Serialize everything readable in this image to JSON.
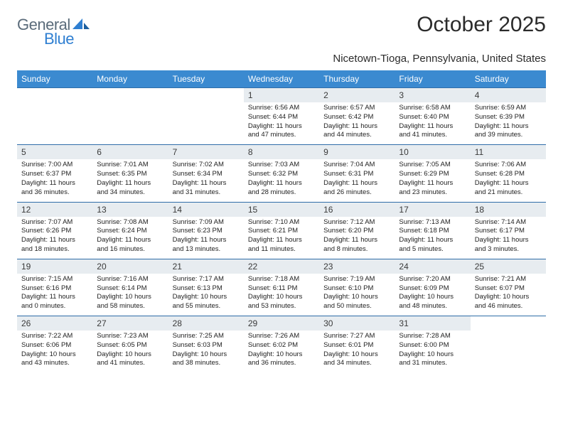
{
  "brand": {
    "part1": "General",
    "part2": "Blue",
    "logo_color": "#2f7fd1",
    "text1_color": "#5a6b7a"
  },
  "title": "October 2025",
  "location": "Nicetown-Tioga, Pennsylvania, United States",
  "header_bg": "#3b8ad0",
  "daynum_bg": "#e7ecf0",
  "border_color": "#2f6da8",
  "day_names": [
    "Sunday",
    "Monday",
    "Tuesday",
    "Wednesday",
    "Thursday",
    "Friday",
    "Saturday"
  ],
  "weeks": [
    [
      null,
      null,
      null,
      {
        "n": "1",
        "sr": "Sunrise: 6:56 AM",
        "ss": "Sunset: 6:44 PM",
        "d1": "Daylight: 11 hours",
        "d2": "and 47 minutes."
      },
      {
        "n": "2",
        "sr": "Sunrise: 6:57 AM",
        "ss": "Sunset: 6:42 PM",
        "d1": "Daylight: 11 hours",
        "d2": "and 44 minutes."
      },
      {
        "n": "3",
        "sr": "Sunrise: 6:58 AM",
        "ss": "Sunset: 6:40 PM",
        "d1": "Daylight: 11 hours",
        "d2": "and 41 minutes."
      },
      {
        "n": "4",
        "sr": "Sunrise: 6:59 AM",
        "ss": "Sunset: 6:39 PM",
        "d1": "Daylight: 11 hours",
        "d2": "and 39 minutes."
      }
    ],
    [
      {
        "n": "5",
        "sr": "Sunrise: 7:00 AM",
        "ss": "Sunset: 6:37 PM",
        "d1": "Daylight: 11 hours",
        "d2": "and 36 minutes."
      },
      {
        "n": "6",
        "sr": "Sunrise: 7:01 AM",
        "ss": "Sunset: 6:35 PM",
        "d1": "Daylight: 11 hours",
        "d2": "and 34 minutes."
      },
      {
        "n": "7",
        "sr": "Sunrise: 7:02 AM",
        "ss": "Sunset: 6:34 PM",
        "d1": "Daylight: 11 hours",
        "d2": "and 31 minutes."
      },
      {
        "n": "8",
        "sr": "Sunrise: 7:03 AM",
        "ss": "Sunset: 6:32 PM",
        "d1": "Daylight: 11 hours",
        "d2": "and 28 minutes."
      },
      {
        "n": "9",
        "sr": "Sunrise: 7:04 AM",
        "ss": "Sunset: 6:31 PM",
        "d1": "Daylight: 11 hours",
        "d2": "and 26 minutes."
      },
      {
        "n": "10",
        "sr": "Sunrise: 7:05 AM",
        "ss": "Sunset: 6:29 PM",
        "d1": "Daylight: 11 hours",
        "d2": "and 23 minutes."
      },
      {
        "n": "11",
        "sr": "Sunrise: 7:06 AM",
        "ss": "Sunset: 6:28 PM",
        "d1": "Daylight: 11 hours",
        "d2": "and 21 minutes."
      }
    ],
    [
      {
        "n": "12",
        "sr": "Sunrise: 7:07 AM",
        "ss": "Sunset: 6:26 PM",
        "d1": "Daylight: 11 hours",
        "d2": "and 18 minutes."
      },
      {
        "n": "13",
        "sr": "Sunrise: 7:08 AM",
        "ss": "Sunset: 6:24 PM",
        "d1": "Daylight: 11 hours",
        "d2": "and 16 minutes."
      },
      {
        "n": "14",
        "sr": "Sunrise: 7:09 AM",
        "ss": "Sunset: 6:23 PM",
        "d1": "Daylight: 11 hours",
        "d2": "and 13 minutes."
      },
      {
        "n": "15",
        "sr": "Sunrise: 7:10 AM",
        "ss": "Sunset: 6:21 PM",
        "d1": "Daylight: 11 hours",
        "d2": "and 11 minutes."
      },
      {
        "n": "16",
        "sr": "Sunrise: 7:12 AM",
        "ss": "Sunset: 6:20 PM",
        "d1": "Daylight: 11 hours",
        "d2": "and 8 minutes."
      },
      {
        "n": "17",
        "sr": "Sunrise: 7:13 AM",
        "ss": "Sunset: 6:18 PM",
        "d1": "Daylight: 11 hours",
        "d2": "and 5 minutes."
      },
      {
        "n": "18",
        "sr": "Sunrise: 7:14 AM",
        "ss": "Sunset: 6:17 PM",
        "d1": "Daylight: 11 hours",
        "d2": "and 3 minutes."
      }
    ],
    [
      {
        "n": "19",
        "sr": "Sunrise: 7:15 AM",
        "ss": "Sunset: 6:16 PM",
        "d1": "Daylight: 11 hours",
        "d2": "and 0 minutes."
      },
      {
        "n": "20",
        "sr": "Sunrise: 7:16 AM",
        "ss": "Sunset: 6:14 PM",
        "d1": "Daylight: 10 hours",
        "d2": "and 58 minutes."
      },
      {
        "n": "21",
        "sr": "Sunrise: 7:17 AM",
        "ss": "Sunset: 6:13 PM",
        "d1": "Daylight: 10 hours",
        "d2": "and 55 minutes."
      },
      {
        "n": "22",
        "sr": "Sunrise: 7:18 AM",
        "ss": "Sunset: 6:11 PM",
        "d1": "Daylight: 10 hours",
        "d2": "and 53 minutes."
      },
      {
        "n": "23",
        "sr": "Sunrise: 7:19 AM",
        "ss": "Sunset: 6:10 PM",
        "d1": "Daylight: 10 hours",
        "d2": "and 50 minutes."
      },
      {
        "n": "24",
        "sr": "Sunrise: 7:20 AM",
        "ss": "Sunset: 6:09 PM",
        "d1": "Daylight: 10 hours",
        "d2": "and 48 minutes."
      },
      {
        "n": "25",
        "sr": "Sunrise: 7:21 AM",
        "ss": "Sunset: 6:07 PM",
        "d1": "Daylight: 10 hours",
        "d2": "and 46 minutes."
      }
    ],
    [
      {
        "n": "26",
        "sr": "Sunrise: 7:22 AM",
        "ss": "Sunset: 6:06 PM",
        "d1": "Daylight: 10 hours",
        "d2": "and 43 minutes."
      },
      {
        "n": "27",
        "sr": "Sunrise: 7:23 AM",
        "ss": "Sunset: 6:05 PM",
        "d1": "Daylight: 10 hours",
        "d2": "and 41 minutes."
      },
      {
        "n": "28",
        "sr": "Sunrise: 7:25 AM",
        "ss": "Sunset: 6:03 PM",
        "d1": "Daylight: 10 hours",
        "d2": "and 38 minutes."
      },
      {
        "n": "29",
        "sr": "Sunrise: 7:26 AM",
        "ss": "Sunset: 6:02 PM",
        "d1": "Daylight: 10 hours",
        "d2": "and 36 minutes."
      },
      {
        "n": "30",
        "sr": "Sunrise: 7:27 AM",
        "ss": "Sunset: 6:01 PM",
        "d1": "Daylight: 10 hours",
        "d2": "and 34 minutes."
      },
      {
        "n": "31",
        "sr": "Sunrise: 7:28 AM",
        "ss": "Sunset: 6:00 PM",
        "d1": "Daylight: 10 hours",
        "d2": "and 31 minutes."
      },
      null
    ]
  ]
}
